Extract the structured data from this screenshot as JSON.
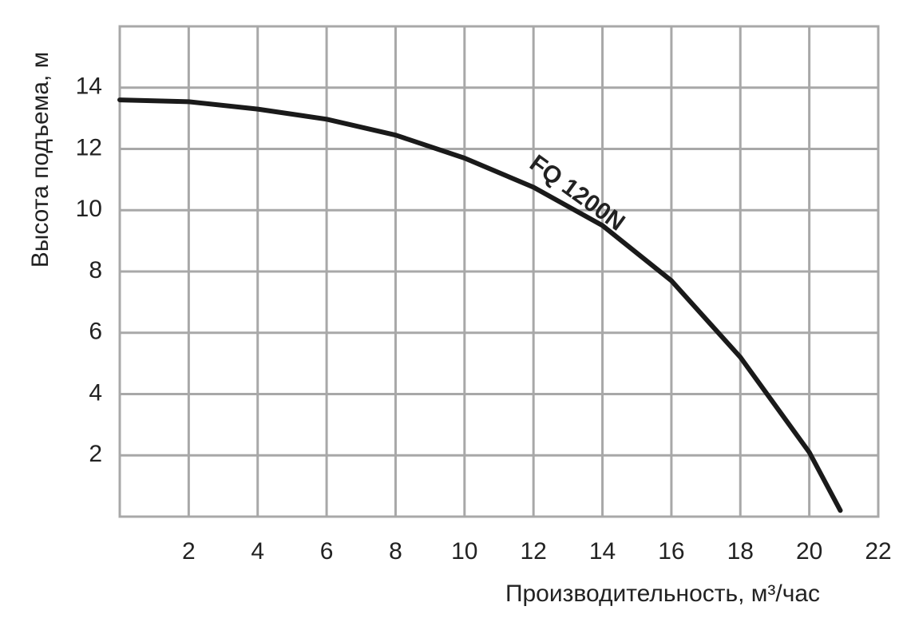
{
  "chart_data": {
    "type": "line",
    "x_label": "Производительность, м³/час",
    "y_label": "Высота подъема, м",
    "x": [
      0,
      2,
      4,
      6,
      8,
      10,
      12,
      14,
      16,
      18,
      20,
      20.9
    ],
    "series": [
      {
        "name": "FQ 1200N",
        "color": "#1a1a1a",
        "values": [
          13.6,
          13.54,
          13.3,
          12.97,
          12.45,
          11.7,
          10.75,
          9.5,
          7.7,
          5.2,
          2.1,
          0.2
        ]
      }
    ],
    "xlim": [
      0,
      22
    ],
    "ylim": [
      0,
      16
    ],
    "xticks": [
      2,
      4,
      6,
      8,
      10,
      12,
      14,
      16,
      18,
      20,
      22
    ],
    "yticks": [
      2,
      4,
      6,
      8,
      10,
      12,
      14
    ],
    "grid": true
  }
}
